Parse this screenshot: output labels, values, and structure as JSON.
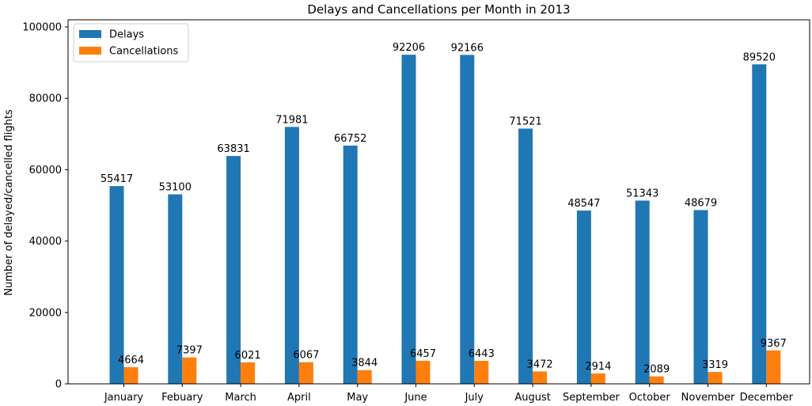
{
  "chart_data": {
    "type": "bar",
    "title": "Delays and Cancellations per Month in 2013",
    "xlabel": "",
    "ylabel": "Number of delayed/cancelled flights",
    "categories": [
      "January",
      "Febuary",
      "March",
      "April",
      "May",
      "June",
      "July",
      "August",
      "September",
      "October",
      "November",
      "December"
    ],
    "series": [
      {
        "name": "Delays",
        "color": "#1f77b4",
        "values": [
          55417,
          53100,
          63831,
          71981,
          66752,
          92206,
          92166,
          71521,
          48547,
          51343,
          48679,
          89520
        ]
      },
      {
        "name": "Cancellations",
        "color": "#ff7f0e",
        "values": [
          4664,
          7397,
          6021,
          6067,
          3844,
          6457,
          6443,
          3472,
          2914,
          2089,
          3319,
          9367
        ]
      }
    ],
    "ylim": [
      0,
      102000
    ],
    "yticks": [
      0,
      20000,
      40000,
      60000,
      80000,
      100000
    ],
    "grid": false,
    "legend_position": "upper left",
    "data_labels": true
  }
}
